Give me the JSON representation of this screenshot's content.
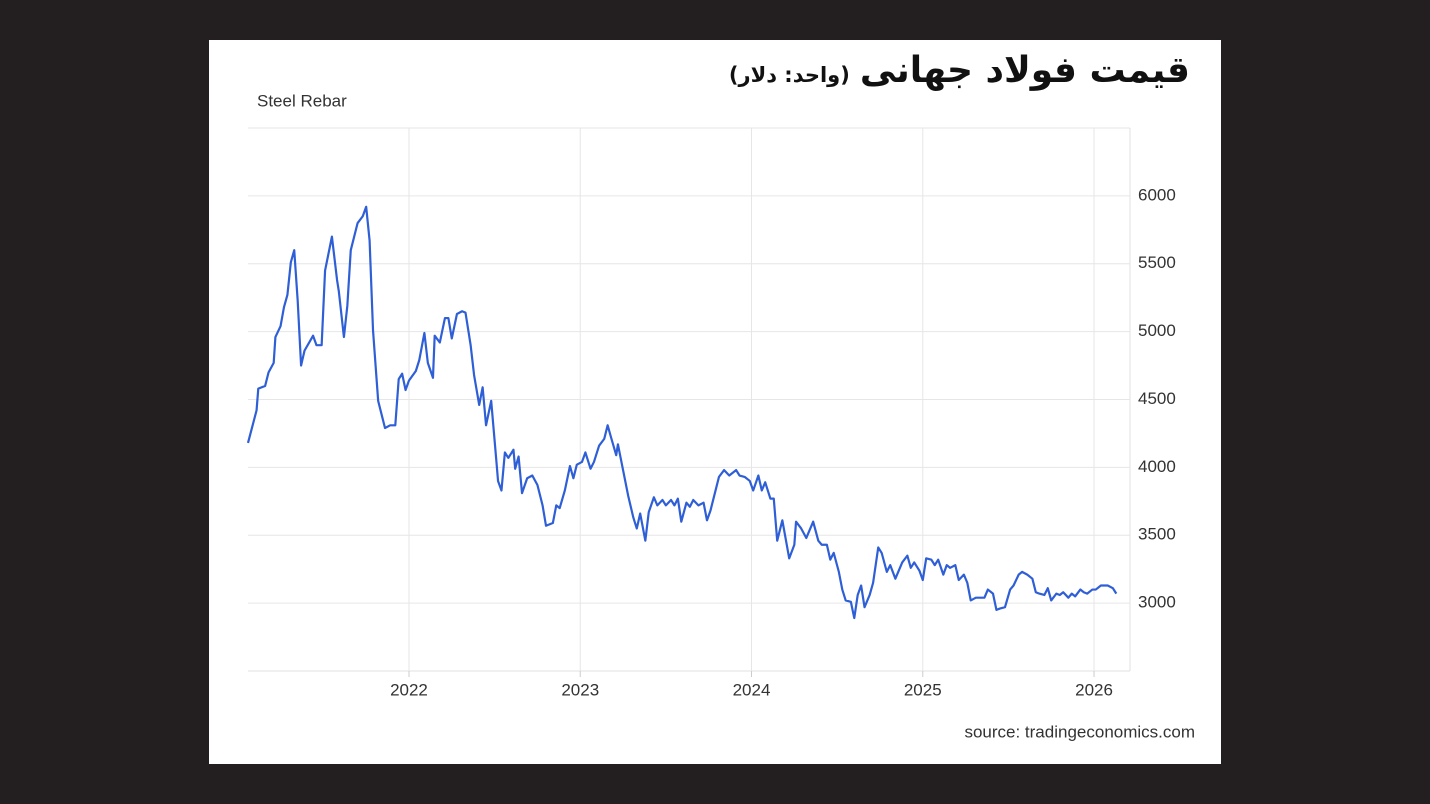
{
  "chart_data": {
    "type": "line",
    "title": "قیمت فولاد جهانی",
    "subtitle": "(واحد: دلار)",
    "source": "source: tradingeconomics.com",
    "y_axis_side": "right",
    "grid": true,
    "xlim": [
      2021.06,
      2026.21
    ],
    "xticks": [
      2022,
      2023,
      2024,
      2025,
      2026
    ],
    "ylim": [
      2500,
      6500
    ],
    "yticks": [
      3000,
      3500,
      4000,
      4500,
      5000,
      5500,
      6000
    ],
    "x": [
      2021.06,
      2021.11,
      2021.12,
      2021.16,
      2021.18,
      2021.21,
      2021.22,
      2021.25,
      2021.27,
      2021.29,
      2021.31,
      2021.33,
      2021.35,
      2021.37,
      2021.39,
      2021.44,
      2021.46,
      2021.49,
      2021.51,
      2021.55,
      2021.58,
      2021.59,
      2021.62,
      2021.64,
      2021.66,
      2021.7,
      2021.73,
      2021.75,
      2021.77,
      2021.79,
      2021.82,
      2021.86,
      2021.89,
      2021.92,
      2021.94,
      2021.96,
      2021.98,
      2022.0,
      2022.04,
      2022.06,
      2022.09,
      2022.11,
      2022.14,
      2022.15,
      2022.18,
      2022.21,
      2022.23,
      2022.25,
      2022.28,
      2022.31,
      2022.33,
      2022.36,
      2022.38,
      2022.41,
      2022.43,
      2022.45,
      2022.48,
      2022.51,
      2022.52,
      2022.54,
      2022.56,
      2022.58,
      2022.61,
      2022.62,
      2022.64,
      2022.66,
      2022.69,
      2022.72,
      2022.75,
      2022.78,
      2022.8,
      2022.84,
      2022.86,
      2022.88,
      2022.91,
      2022.94,
      2022.96,
      2022.98,
      2023.01,
      2023.03,
      2023.06,
      2023.08,
      2023.11,
      2023.14,
      2023.16,
      2023.18,
      2023.21,
      2023.22,
      2023.25,
      2023.28,
      2023.31,
      2023.33,
      2023.35,
      2023.38,
      2023.4,
      2023.43,
      2023.45,
      2023.48,
      2023.5,
      2023.53,
      2023.55,
      2023.57,
      2023.59,
      2023.62,
      2023.64,
      2023.66,
      2023.69,
      2023.72,
      2023.74,
      2023.76,
      2023.79,
      2023.81,
      2023.84,
      2023.87,
      2023.91,
      2023.93,
      2023.96,
      2023.99,
      2024.01,
      2024.04,
      2024.06,
      2024.08,
      2024.11,
      2024.13,
      2024.15,
      2024.18,
      2024.21,
      2024.22,
      2024.25,
      2024.26,
      2024.29,
      2024.32,
      2024.34,
      2024.36,
      2024.39,
      2024.41,
      2024.44,
      2024.46,
      2024.48,
      2024.51,
      2024.53,
      2024.55,
      2024.58,
      2024.6,
      2024.62,
      2024.64,
      2024.66,
      2024.69,
      2024.71,
      2024.74,
      2024.76,
      2024.79,
      2024.81,
      2024.84,
      2024.86,
      2024.88,
      2024.91,
      2024.93,
      2024.95,
      2024.98,
      2025.0,
      2025.02,
      2025.05,
      2025.07,
      2025.09,
      2025.12,
      2025.14,
      2025.16,
      2025.19,
      2025.21,
      2025.24,
      2025.26,
      2025.28,
      2025.31,
      2025.34,
      2025.36,
      2025.38,
      2025.41,
      2025.43,
      2025.45,
      2025.48,
      2025.51,
      2025.53,
      2025.56,
      2025.58,
      2025.61,
      2025.64,
      2025.66,
      2025.68,
      2025.71,
      2025.73,
      2025.75,
      2025.78,
      2025.8,
      2025.82,
      2025.85,
      2025.87,
      2025.89,
      2025.92,
      2025.94,
      2025.96,
      2025.99,
      2026.01,
      2026.04,
      2026.06,
      2026.08,
      2026.11,
      2026.13
    ],
    "series": [
      {
        "name": "Steel Rebar",
        "color": "#2f5fd6",
        "values": [
          4180,
          4420,
          4580,
          4600,
          4700,
          4770,
          4960,
          5040,
          5180,
          5270,
          5510,
          5600,
          5230,
          4750,
          4860,
          4970,
          4900,
          4900,
          5450,
          5700,
          5380,
          5300,
          4960,
          5190,
          5600,
          5800,
          5850,
          5920,
          5670,
          5010,
          4490,
          4290,
          4310,
          4310,
          4650,
          4690,
          4570,
          4640,
          4710,
          4790,
          4990,
          4770,
          4660,
          4970,
          4920,
          5100,
          5100,
          4950,
          5130,
          5150,
          5140,
          4900,
          4680,
          4460,
          4590,
          4310,
          4490,
          4050,
          3900,
          3830,
          4110,
          4070,
          4130,
          3990,
          4080,
          3810,
          3920,
          3940,
          3870,
          3720,
          3570,
          3590,
          3720,
          3700,
          3830,
          4010,
          3920,
          4020,
          4040,
          4110,
          3990,
          4040,
          4160,
          4210,
          4310,
          4220,
          4090,
          4170,
          3980,
          3790,
          3630,
          3550,
          3660,
          3460,
          3670,
          3780,
          3720,
          3760,
          3720,
          3760,
          3720,
          3770,
          3600,
          3740,
          3710,
          3760,
          3720,
          3740,
          3610,
          3680,
          3830,
          3930,
          3980,
          3940,
          3980,
          3940,
          3930,
          3900,
          3830,
          3940,
          3830,
          3890,
          3770,
          3770,
          3460,
          3610,
          3400,
          3330,
          3430,
          3600,
          3550,
          3480,
          3540,
          3600,
          3460,
          3430,
          3430,
          3320,
          3370,
          3230,
          3100,
          3020,
          3010,
          2890,
          3060,
          3130,
          2970,
          3060,
          3150,
          3410,
          3370,
          3230,
          3280,
          3180,
          3240,
          3300,
          3350,
          3260,
          3300,
          3240,
          3170,
          3330,
          3320,
          3280,
          3320,
          3210,
          3280,
          3260,
          3280,
          3170,
          3210,
          3150,
          3020,
          3040,
          3040,
          3040,
          3100,
          3070,
          2950,
          2960,
          2970,
          3100,
          3130,
          3210,
          3230,
          3210,
          3180,
          3080,
          3070,
          3060,
          3110,
          3020,
          3070,
          3060,
          3080,
          3040,
          3070,
          3050,
          3100,
          3080,
          3070,
          3100,
          3100,
          3130,
          3130,
          3130,
          3110,
          3070
        ]
      }
    ]
  }
}
